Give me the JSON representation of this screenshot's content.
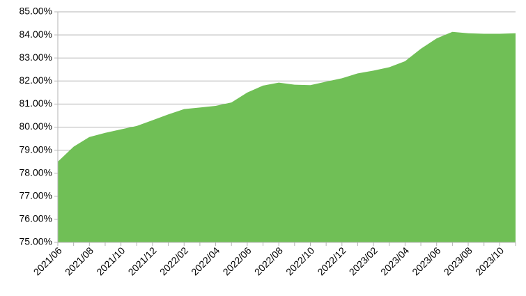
{
  "chart_data": {
    "type": "area",
    "color": "#70bf56",
    "grid": true,
    "categories": [
      "2021/06",
      null,
      "2021/08",
      null,
      "2021/10",
      null,
      "2021/12",
      null,
      "2022/02",
      null,
      "2022/04",
      null,
      "2022/06",
      null,
      "2022/08",
      null,
      "2022/10",
      null,
      "2022/12",
      null,
      "2023/02",
      null,
      "2023/04",
      null,
      "2023/06",
      null,
      "2023/08",
      null,
      "2023/10",
      null
    ],
    "values": [
      78.5,
      79.15,
      79.57,
      79.75,
      79.9,
      80.05,
      80.3,
      80.55,
      80.78,
      80.85,
      80.92,
      81.07,
      81.5,
      81.8,
      81.93,
      81.84,
      81.82,
      81.97,
      82.12,
      82.33,
      82.45,
      82.6,
      82.86,
      83.4,
      83.85,
      84.13,
      84.07,
      84.05,
      84.05,
      84.07
    ],
    "ylim": [
      75,
      85
    ],
    "yticks": [
      {
        "value": 75,
        "label": "75.00%"
      },
      {
        "value": 76,
        "label": "76.00%"
      },
      {
        "value": 77,
        "label": "77.00%"
      },
      {
        "value": 78,
        "label": "78.00%"
      },
      {
        "value": 79,
        "label": "79.00%"
      },
      {
        "value": 80,
        "label": "80.00%"
      },
      {
        "value": 81,
        "label": "81.00%"
      },
      {
        "value": 82,
        "label": "82.00%"
      },
      {
        "value": 83,
        "label": "83.00%"
      },
      {
        "value": 84,
        "label": "84.00%"
      },
      {
        "value": 85,
        "label": "85.00%"
      }
    ]
  }
}
